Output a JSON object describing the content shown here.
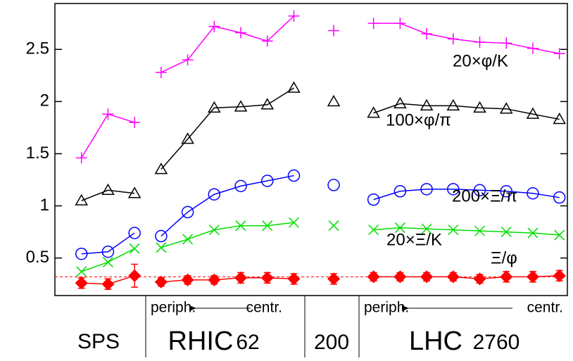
{
  "chart_data": {
    "type": "line",
    "x": [
      1,
      2,
      3,
      3.5,
      4,
      5,
      6,
      7,
      8,
      9,
      9.5,
      10.5,
      11.5,
      12,
      13,
      14,
      15,
      16,
      17,
      18,
      19
    ],
    "series": [
      {
        "name": "20×φ/K",
        "color": "#ff00ff",
        "marker": "plus",
        "values": [
          1.46,
          1.88,
          1.8,
          null,
          2.28,
          2.4,
          2.72,
          2.66,
          2.58,
          2.82,
          null,
          2.68,
          null,
          2.75,
          2.75,
          2.65,
          2.6,
          2.57,
          2.56,
          2.51,
          2.46
        ]
      },
      {
        "name": "100×φ/π",
        "color": "#000000",
        "marker": "triangle",
        "values": [
          1.05,
          1.15,
          1.12,
          null,
          1.35,
          1.64,
          1.94,
          1.95,
          1.97,
          2.13,
          null,
          2.0,
          null,
          1.89,
          1.98,
          1.96,
          1.96,
          1.94,
          1.93,
          1.88,
          1.83
        ]
      },
      {
        "name": "200×Ξ/π",
        "color": "#0000ff",
        "marker": "circle",
        "values": [
          0.54,
          0.56,
          0.74,
          null,
          0.71,
          0.94,
          1.11,
          1.19,
          1.24,
          1.29,
          null,
          1.2,
          null,
          1.06,
          1.14,
          1.16,
          1.16,
          1.15,
          1.14,
          1.12,
          1.08
        ]
      },
      {
        "name": "20×Ξ/K",
        "color": "#00dd00",
        "marker": "cross",
        "values": [
          0.37,
          0.46,
          0.59,
          null,
          0.6,
          0.68,
          0.77,
          0.81,
          0.81,
          0.84,
          null,
          0.81,
          null,
          0.77,
          0.79,
          0.78,
          0.77,
          0.76,
          0.75,
          0.74,
          0.72
        ]
      },
      {
        "name": "Ξ/φ",
        "color": "#ff0000",
        "marker": "diamond",
        "values": [
          0.26,
          0.25,
          0.33,
          null,
          0.27,
          0.29,
          0.29,
          0.31,
          0.31,
          0.3,
          null,
          0.3,
          null,
          0.32,
          0.32,
          0.32,
          0.32,
          0.3,
          0.32,
          0.32,
          0.33
        ],
        "errors": [
          0.05,
          0.05,
          0.11,
          null,
          0.04,
          0.04,
          0.04,
          0.05,
          0.05,
          0.05,
          null,
          0.05,
          null,
          0.04,
          0.04,
          0.04,
          0.04,
          0.04,
          0.05,
          0.05,
          0.05
        ]
      }
    ],
    "reference_line": 0.32,
    "xlim": [
      0,
      19.3
    ],
    "ylim": [
      0.14,
      2.94
    ],
    "yticks": [
      0.5,
      1,
      1.5,
      2,
      2.5
    ],
    "annotations": [
      "periph.",
      "centr.",
      "periph.",
      "centr.",
      "SPS",
      "RHIC",
      "62",
      "200",
      "LHC",
      "2760"
    ]
  }
}
